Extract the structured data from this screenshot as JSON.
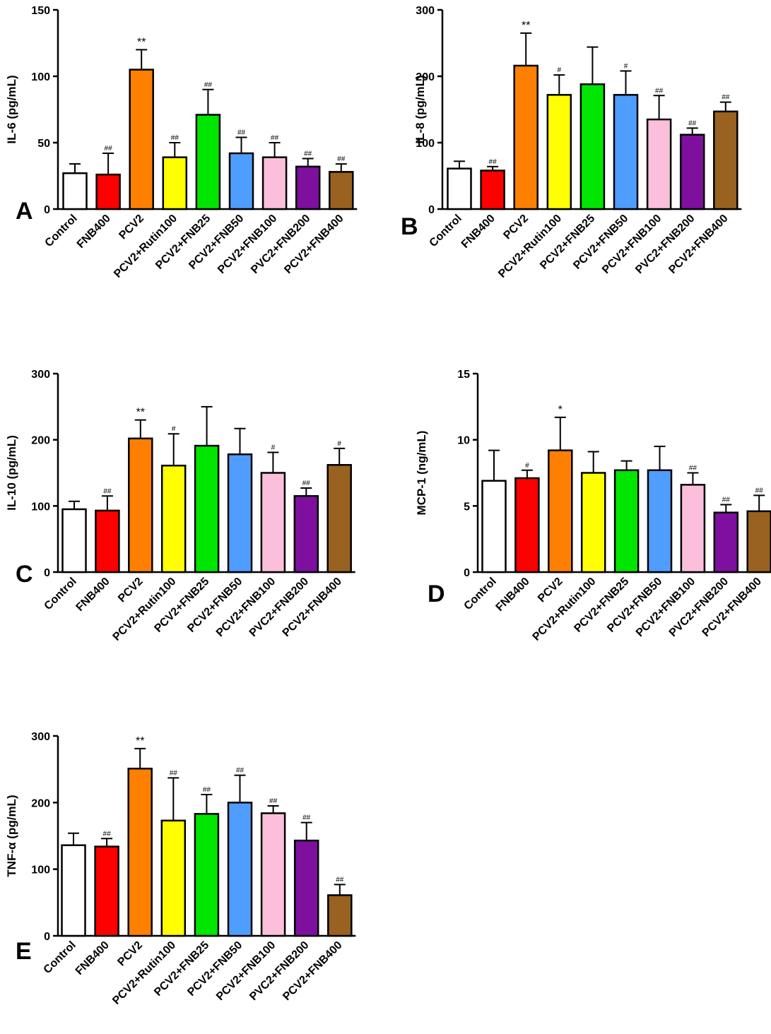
{
  "chart_data": [
    {
      "type": "bar",
      "panel": "A",
      "ylabel": "IL-6 (pg/mL)",
      "ylim": [
        0,
        150
      ],
      "yticks": [
        0,
        50,
        100,
        150
      ],
      "ytick_labels": [
        "0",
        "50",
        "100",
        "150"
      ],
      "categories": [
        "Control",
        "FNB400",
        "PCV2",
        "PCV2+Rutin100",
        "PCV2+FNB25",
        "PCV2+FNB50",
        "PCV2+FNB100",
        "PVC2+FNB200",
        "PCV2+FNB400"
      ],
      "colors": [
        "#ffffff",
        "#ff0000",
        "#ff8000",
        "#ffff00",
        "#00e600",
        "#4f9dff",
        "#fbbfdc",
        "#7f0f9e",
        "#996220"
      ],
      "values": [
        27,
        26,
        105,
        39,
        71,
        42,
        39,
        32,
        28
      ],
      "errors": [
        7,
        16,
        15,
        11,
        19,
        12,
        11,
        6,
        6
      ],
      "annotations": [
        "",
        "##",
        "**",
        "##",
        "##",
        "##",
        "##",
        "##",
        "##"
      ]
    },
    {
      "type": "bar",
      "panel": "B",
      "ylabel": "IL-8 (pg/mL)",
      "ylim": [
        0,
        300
      ],
      "yticks": [
        0,
        100,
        200,
        300
      ],
      "ytick_labels": [
        "0",
        "100",
        "200",
        "300"
      ],
      "categories": [
        "Control",
        "FNB400",
        "PCV2",
        "PCV2+Rutin100",
        "PCV2+FNB25",
        "PCV2+FNB50",
        "PCV2+FNB100",
        "PVC2+FNB200",
        "PCV2+FNB400"
      ],
      "colors": [
        "#ffffff",
        "#ff0000",
        "#ff8000",
        "#ffff00",
        "#00e600",
        "#4f9dff",
        "#fbbfdc",
        "#7f0f9e",
        "#996220"
      ],
      "values": [
        61,
        58,
        216,
        172,
        188,
        172,
        135,
        112,
        147
      ],
      "errors": [
        11,
        6,
        49,
        30,
        56,
        36,
        36,
        10,
        14
      ],
      "annotations": [
        "",
        "##",
        "**",
        "#",
        "",
        "#",
        "##",
        "##",
        "##"
      ]
    },
    {
      "type": "bar",
      "panel": "C",
      "ylabel": "IL-10 (pg/mL)",
      "ylim": [
        0,
        300
      ],
      "yticks": [
        0,
        100,
        200,
        300
      ],
      "ytick_labels": [
        "0",
        "100",
        "200",
        "300"
      ],
      "categories": [
        "Control",
        "FNB400",
        "PCV2",
        "PCV2+Rutin100",
        "PCV2+FNB25",
        "PCV2+FNB50",
        "PCV2+FNB100",
        "PVC2+FNB200",
        "PCV2+FNB400"
      ],
      "colors": [
        "#ffffff",
        "#ff0000",
        "#ff8000",
        "#ffff00",
        "#00e600",
        "#4f9dff",
        "#fbbfdc",
        "#7f0f9e",
        "#996220"
      ],
      "values": [
        95,
        93,
        202,
        161,
        191,
        178,
        150,
        115,
        162
      ],
      "errors": [
        12,
        22,
        28,
        48,
        59,
        39,
        31,
        12,
        25
      ],
      "annotations": [
        "",
        "##",
        "**",
        "#",
        "",
        "",
        "#",
        "##",
        "#"
      ]
    },
    {
      "type": "bar",
      "panel": "D",
      "ylabel": "MCP-1 (ng/mL)",
      "ylim": [
        0,
        15
      ],
      "yticks": [
        0,
        5,
        10,
        15
      ],
      "ytick_labels": [
        "0",
        "5",
        "10",
        "15"
      ],
      "categories": [
        "Control",
        "FNB400",
        "PCV2",
        "PCV2+Rutin100",
        "PCV2+FNB25",
        "PCV2+FNB50",
        "PCV2+FNB100",
        "PVC2+FNB200",
        "PCV2+FNB400"
      ],
      "colors": [
        "#ffffff",
        "#ff0000",
        "#ff8000",
        "#ffff00",
        "#00e600",
        "#4f9dff",
        "#fbbfdc",
        "#7f0f9e",
        "#996220"
      ],
      "values": [
        6.9,
        7.1,
        9.2,
        7.5,
        7.7,
        7.7,
        6.6,
        4.5,
        4.6
      ],
      "errors": [
        2.3,
        0.6,
        2.5,
        1.6,
        0.7,
        1.8,
        0.9,
        0.6,
        1.2
      ],
      "annotations": [
        "",
        "#",
        "*",
        "",
        "",
        "",
        "##",
        "##",
        "##"
      ]
    },
    {
      "type": "bar",
      "panel": "E",
      "ylabel": "TNF-α (pg/mL)",
      "ylim": [
        0,
        300
      ],
      "yticks": [
        0,
        100,
        200,
        300
      ],
      "ytick_labels": [
        "0",
        "100",
        "200",
        "300"
      ],
      "categories": [
        "Control",
        "FNB400",
        "PCV2",
        "PCV2+Rutin100",
        "PCV2+FNB25",
        "PCV2+FNB50",
        "PCV2+FNB100",
        "PVC2+FNB200",
        "PCV2+FNB400"
      ],
      "colors": [
        "#ffffff",
        "#ff0000",
        "#ff8000",
        "#ffff00",
        "#00e600",
        "#4f9dff",
        "#fbbfdc",
        "#7f0f9e",
        "#996220"
      ],
      "values": [
        136,
        134,
        251,
        173,
        183,
        200,
        184,
        143,
        61
      ],
      "errors": [
        18,
        12,
        30,
        64,
        29,
        41,
        11,
        27,
        16
      ],
      "annotations": [
        "",
        "##",
        "**",
        "##",
        "##",
        "##",
        "##",
        "##",
        "##"
      ]
    }
  ]
}
